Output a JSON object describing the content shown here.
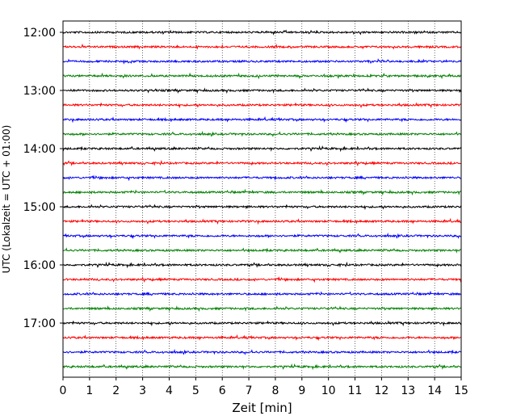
{
  "chart_data": {
    "type": "line",
    "title": "",
    "xlabel": "Zeit  [min]",
    "ylabel": "UTC (Lokalzeit = UTC + 01:00)",
    "xlim": [
      0,
      15
    ],
    "x_ticks": [
      "0",
      "1",
      "2",
      "3",
      "4",
      "5",
      "6",
      "7",
      "8",
      "9",
      "10",
      "11",
      "12",
      "13",
      "14",
      "15"
    ],
    "y_tick_labels": [
      "12:00",
      "13:00",
      "14:00",
      "15:00",
      "16:00",
      "17:00"
    ],
    "grid": "vertical dotted at each minute",
    "trace_interval_minutes": 15,
    "trace_colors": [
      "#000000",
      "#ff0000",
      "#0000ff",
      "#008000"
    ],
    "traces": [
      {
        "start": "12:00",
        "color": "#000000"
      },
      {
        "start": "12:15",
        "color": "#ff0000"
      },
      {
        "start": "12:30",
        "color": "#0000ff"
      },
      {
        "start": "12:45",
        "color": "#008000"
      },
      {
        "start": "13:00",
        "color": "#000000"
      },
      {
        "start": "13:15",
        "color": "#ff0000"
      },
      {
        "start": "13:30",
        "color": "#0000ff"
      },
      {
        "start": "13:45",
        "color": "#008000"
      },
      {
        "start": "14:00",
        "color": "#000000"
      },
      {
        "start": "14:15",
        "color": "#ff0000"
      },
      {
        "start": "14:30",
        "color": "#0000ff"
      },
      {
        "start": "14:45",
        "color": "#008000"
      },
      {
        "start": "15:00",
        "color": "#000000"
      },
      {
        "start": "15:15",
        "color": "#ff0000"
      },
      {
        "start": "15:30",
        "color": "#0000ff"
      },
      {
        "start": "15:45",
        "color": "#008000"
      },
      {
        "start": "16:00",
        "color": "#000000"
      },
      {
        "start": "16:15",
        "color": "#ff0000"
      },
      {
        "start": "16:30",
        "color": "#0000ff"
      },
      {
        "start": "16:45",
        "color": "#008000"
      },
      {
        "start": "17:00",
        "color": "#000000"
      },
      {
        "start": "17:15",
        "color": "#ff0000"
      },
      {
        "start": "17:30",
        "color": "#0000ff"
      },
      {
        "start": "17:45",
        "color": "#008000"
      }
    ]
  }
}
